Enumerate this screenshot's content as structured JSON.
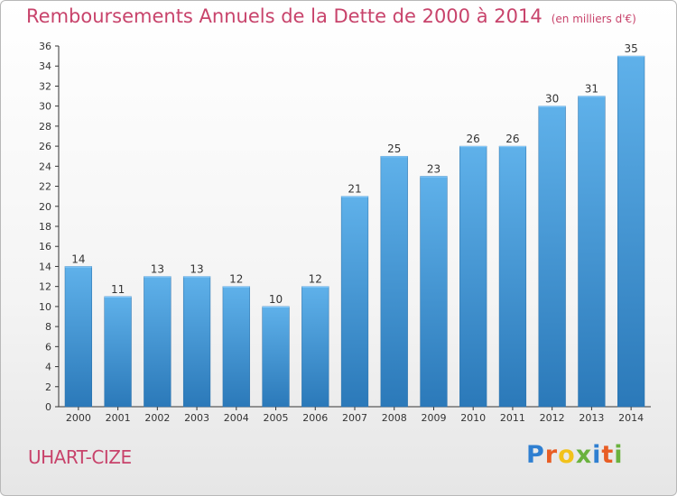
{
  "chart_data": {
    "type": "bar",
    "title": "Remboursements Annuels de la Dette de 2000 à 2014",
    "subtitle": "(en milliers d'€)",
    "categories": [
      "2000",
      "2001",
      "2002",
      "2003",
      "2004",
      "2005",
      "2006",
      "2007",
      "2008",
      "2009",
      "2010",
      "2011",
      "2012",
      "2013",
      "2014"
    ],
    "values": [
      14,
      11,
      13,
      13,
      12,
      10,
      12,
      21,
      25,
      23,
      26,
      26,
      30,
      31,
      35
    ],
    "ylim": [
      0,
      36
    ],
    "ytick_step": 2,
    "grid": false,
    "legend": "none",
    "bar_color": "#4a98d6"
  },
  "place_name": "UHART-CIZE",
  "logo": {
    "letters": [
      "P",
      "r",
      "o",
      "x",
      "i",
      "t",
      "i"
    ],
    "colors": [
      "#2f7fd1",
      "#e85d24",
      "#f2c21b",
      "#6ab23e",
      "#2f7fd1",
      "#e85d24",
      "#6ab23e"
    ]
  },
  "colors": {
    "title": "#c8436b",
    "axis": "#333333"
  }
}
